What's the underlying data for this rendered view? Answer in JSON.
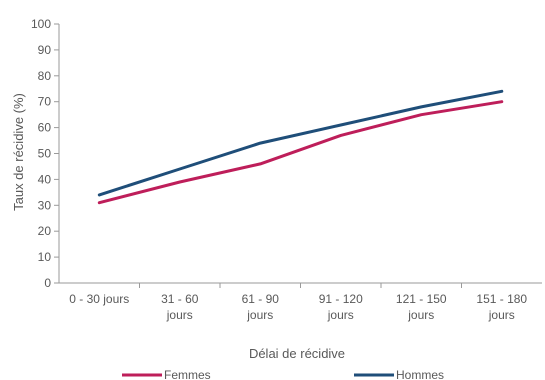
{
  "chart_data": {
    "type": "line",
    "title": "",
    "xlabel": "Délai de récidive",
    "ylabel": "Taux de récidive (%)",
    "ylim": [
      0,
      100
    ],
    "y_ticks": [
      0,
      10,
      20,
      30,
      40,
      50,
      60,
      70,
      80,
      90,
      100
    ],
    "categories": [
      [
        "0 - 30 jours"
      ],
      [
        "31 - 60",
        "jours"
      ],
      [
        "61 - 90",
        "jours"
      ],
      [
        "91 - 120",
        "jours"
      ],
      [
        "121 - 150",
        "jours"
      ],
      [
        "151 - 180",
        "jours"
      ]
    ],
    "series": [
      {
        "name": "Femmes",
        "color": "#be1e5a",
        "values": [
          31,
          39,
          46,
          57,
          65,
          70
        ]
      },
      {
        "name": "Hommes",
        "color": "#1f4e79",
        "values": [
          34,
          44,
          54,
          61,
          68,
          74
        ]
      }
    ],
    "grid": false,
    "legend_position": "bottom"
  }
}
